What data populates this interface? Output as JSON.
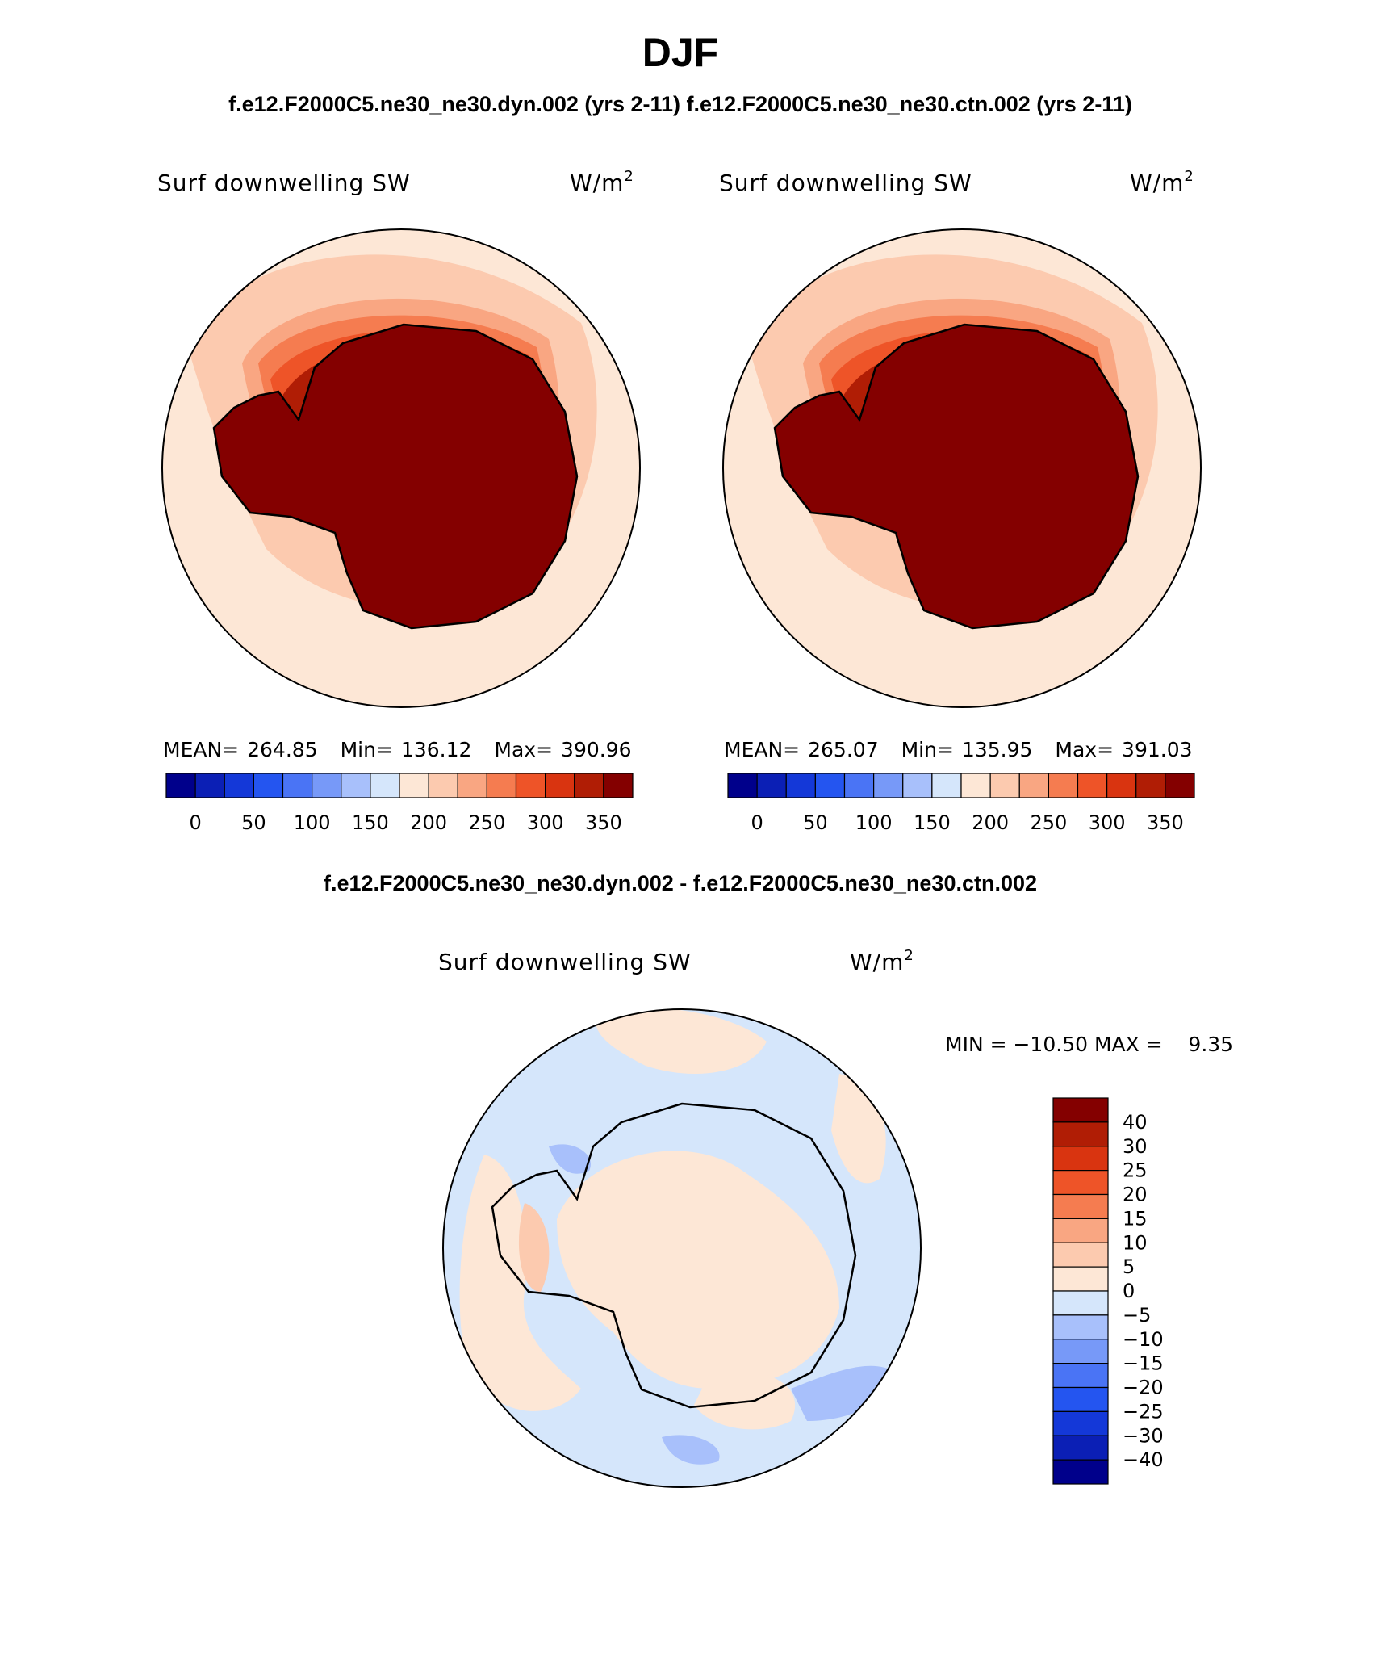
{
  "page": {
    "season": "DJF",
    "case_line": "f.e12.F2000C5.ne30_ne30.dyn.002 (yrs 2-11)  f.e12.F2000C5.ne30_ne30.ctn.002 (yrs 2-11)",
    "diff_title": "f.e12.F2000C5.ne30_ne30.dyn.002 - f.e12.F2000C5.ne30_ne30.ctn.002"
  },
  "panels": [
    {
      "variable": "Surf downwelling SW",
      "units_base": "W/m",
      "units_exp": "2",
      "stats": {
        "mean_label": "MEAN=",
        "mean": "264.85",
        "min_label": "Min=",
        "min": "136.12",
        "max_label": "Max=",
        "max": "390.96"
      }
    },
    {
      "variable": "Surf downwelling SW",
      "units_base": "W/m",
      "units_exp": "2",
      "stats": {
        "mean_label": "MEAN=",
        "mean": "265.07",
        "min_label": "Min=",
        "min": "135.95",
        "max_label": "Max=",
        "max": "391.03"
      }
    }
  ],
  "diff_panel": {
    "variable": "Surf downwelling SW",
    "units_base": "W/m",
    "units_exp": "2",
    "minmax": "MIN = −10.50 MAX =    9.35"
  },
  "main_colorbar": {
    "labels": [
      "0",
      "50",
      "100",
      "150",
      "200",
      "250",
      "300",
      "350"
    ],
    "colors": [
      "#00008b",
      "#0b1fb5",
      "#1438d8",
      "#2455f0",
      "#4a74f5",
      "#7799f8",
      "#a8c0fb",
      "#d5e6fb",
      "#fde7d6",
      "#fccaaf",
      "#f9a682",
      "#f57c50",
      "#ee5428",
      "#d93410",
      "#b01d05",
      "#840000"
    ]
  },
  "diff_colorbar": {
    "labels": [
      "40",
      "30",
      "25",
      "20",
      "15",
      "10",
      "5",
      "0",
      "−5",
      "−10",
      "−15",
      "−20",
      "−25",
      "−30",
      "−40"
    ],
    "colors": [
      "#840000",
      "#b01d05",
      "#d93410",
      "#ee5428",
      "#f57c50",
      "#f9a682",
      "#fccaaf",
      "#fde7d6",
      "#d5e6fb",
      "#a8c0fb",
      "#7799f8",
      "#4a74f5",
      "#2455f0",
      "#1438d8",
      "#0b1fb5",
      "#00008b"
    ]
  },
  "map_colors": {
    "c200": "#fde7d6",
    "c250": "#fccaaf",
    "c300": "#f9a682",
    "c330": "#f57c50",
    "c350": "#ee5428",
    "c370": "#d93410",
    "c380": "#b01d05",
    "c390": "#840000",
    "neg5": "#d5e6fb",
    "neg10": "#a8c0fb",
    "pos5": "#fde7d6",
    "pos10": "#fccaaf",
    "coast": "#000000"
  },
  "chart_data": {
    "type": "heatmap",
    "title": "DJF",
    "variable": "Surf downwelling SW",
    "units": "W/m2",
    "projection": "South polar stereographic",
    "panels": [
      {
        "case": "f.e12.F2000C5.ne30_ne30.dyn.002 (yrs 2-11)",
        "mean": 264.85,
        "min": 136.12,
        "max": 390.96,
        "levels": [
          0,
          50,
          100,
          150,
          200,
          250,
          300,
          350
        ]
      },
      {
        "case": "f.e12.F2000C5.ne30_ne30.ctn.002 (yrs 2-11)",
        "mean": 265.07,
        "min": 135.95,
        "max": 391.03,
        "levels": [
          0,
          50,
          100,
          150,
          200,
          250,
          300,
          350
        ]
      },
      {
        "case": "f.e12.F2000C5.ne30_ne30.dyn.002 - f.e12.F2000C5.ne30_ne30.ctn.002",
        "min": -10.5,
        "max": 9.35,
        "levels": [
          -40,
          -30,
          -25,
          -20,
          -15,
          -10,
          -5,
          0,
          5,
          10,
          15,
          20,
          25,
          30,
          40
        ]
      }
    ]
  }
}
